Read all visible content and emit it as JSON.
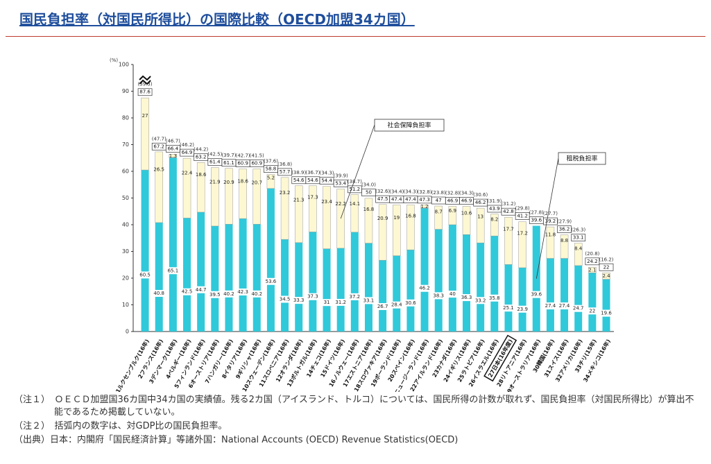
{
  "chart_data": {
    "type": "stacked-bar",
    "title": "国民負担率（対国民所得比）の国際比較（OECD加盟34カ国）",
    "y_unit": "(%)",
    "categories": [
      "1ルクセンブルク(16年)",
      "2フランス(16年)",
      "3デンマーク(16年)",
      "4ベルギー(16年)",
      "5フィンランド(16年)",
      "6オーストリア(16年)",
      "7ハンガリー(16年)",
      "8イタリア(16年)",
      "9ギリシャ(16年)",
      "10スウェーデン(16年)",
      "11スロベニア(16年)",
      "12オランダ(16年)",
      "13ポルトガル(16年)",
      "14チェコ(16年)",
      "15ドイツ(16年)",
      "16ノルウェー(16年)",
      "17エストニア(16年)",
      "18スロヴァキア(16年)",
      "19ポーランド(16年)",
      "20スペイン(16年)",
      "21ニュージーランド(16年)",
      "22アイルランド(16年)",
      "23カナダ(16年)",
      "24イギリス(16年)",
      "25ラトビア(16年)",
      "26イスラエル(16年)",
      "27日本(16年度)",
      "28リトアニア(16年)",
      "29オーストラリア(16年)",
      "30韓国(16年)",
      "31スイス(16年)",
      "32アメリカ(16年)",
      "33チリ(15年)",
      "34メキシコ(16年)"
    ],
    "highlight_index": 26,
    "series": [
      {
        "name": "租税負担率",
        "color": "#2fc9da",
        "values": [
          60.5,
          40.8,
          65.1,
          42.5,
          44.7,
          39.5,
          40.2,
          42.3,
          40.2,
          53.6,
          34.5,
          33.3,
          37.3,
          31.0,
          31.2,
          37.2,
          33.1,
          26.7,
          28.4,
          30.6,
          46.2,
          38.3,
          40.0,
          36.3,
          33.2,
          35.8,
          25.1,
          23.9,
          39.6,
          27.4,
          27.4,
          24.7,
          22.0,
          19.6
        ]
      },
      {
        "name": "社会保障負担率",
        "color": "#fdf8d2",
        "values": [
          27.0,
          26.5,
          1.3,
          22.4,
          18.6,
          21.9,
          20.9,
          18.6,
          20.7,
          5.2,
          23.2,
          21.3,
          17.3,
          23.4,
          22.2,
          14.1,
          16.8,
          20.9,
          19.0,
          16.8,
          1.2,
          8.7,
          6.9,
          10.6,
          13.0,
          8.2,
          17.7,
          17.2,
          0,
          11.8,
          8.8,
          8.4,
          2.1,
          2.4
        ]
      }
    ],
    "totals": [
      87.6,
      67.2,
      66.4,
      64.9,
      63.2,
      61.4,
      61.1,
      60.9,
      60.9,
      58.8,
      57.7,
      54.6,
      54.6,
      54.4,
      53.4,
      51.2,
      50.0,
      47.5,
      47.4,
      47.4,
      47.3,
      47.0,
      46.9,
      46.9,
      46.2,
      43.9,
      42.8,
      41.2,
      39.6,
      39.2,
      36.2,
      33.1,
      24.2,
      22.0
    ],
    "gdp_ratio": {
      "values": [
        39.3,
        47.7,
        46.7,
        46.2,
        44.2,
        42.5,
        39.7,
        42.7,
        41.5,
        37.6,
        36.8,
        38.9,
        36.7,
        34.3,
        39.9,
        38.7,
        34.0,
        32.6,
        34.4,
        34.3,
        32.8,
        23.8,
        32.8,
        34.3,
        30.6,
        31.9,
        31.2,
        29.8,
        27.8,
        27.7,
        27.9,
        26.3,
        20.8,
        16.2
      ],
      "value_labels": [
        "(39.3)",
        "(47.7)",
        "(46.7)",
        "(46.2)",
        "(44.2)",
        "(42.5)",
        "(39.7)",
        "(42.7)",
        "(41.5)",
        "(37.6)",
        "(36.8)",
        "(38.9)",
        "(36.7)",
        "(34.3)",
        "(39.9)",
        "(38.7)",
        "(34.0)",
        "(32.6)",
        "(34.4)",
        "(34.3)",
        "(32.8)",
        "(23.8)",
        "(32.8)",
        "(34.3)",
        "(30.6)",
        "(31.9)",
        "(31.2)",
        "(29.8)",
        "(27.8)",
        "(27.7)",
        "(27.9)",
        "(26.3)",
        "(20.8)",
        "(16.2)"
      ]
    },
    "ylim": [
      0,
      100
    ],
    "yticks": [
      0,
      10,
      20,
      30,
      40,
      50,
      60,
      70,
      80,
      90,
      100
    ],
    "annotations": [
      {
        "text": "社会保障負担率",
        "series": 1,
        "index": 14
      },
      {
        "text": "租税負担率",
        "series": 0,
        "index": 28
      }
    ],
    "notes": [
      "（注１）　ＯＥＣＤ加盟国36カ国中34カ国の実績値。残る2カ国（アイスランド、トルコ）については、国民所得の計数が取れず、国民負担率（対国民所得比）が算出不能であるため掲載していない。",
      "（注２）　括弧内の数字は、対GDP比の国民負担率。",
      "（出典）日本：内閣府「国民経済計算」等諸外国：National Accounts (OECD) Revenue Statistics(OECD)"
    ]
  }
}
